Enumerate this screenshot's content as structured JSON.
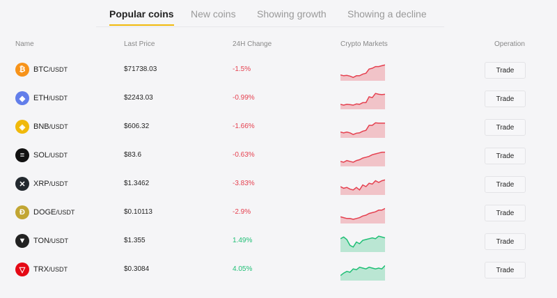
{
  "tabs": [
    "Popular coins",
    "New coins",
    "Showing growth",
    "Showing a decline"
  ],
  "active_tab": 0,
  "headers": {
    "name": "Name",
    "price": "Last Price",
    "change": "24H Change",
    "markets": "Crypto Markets",
    "operation": "Operation"
  },
  "colors": {
    "down": "#e5404f",
    "up": "#1fbf75",
    "accent": "#f0b90b"
  },
  "rows": [
    {
      "base": "BTC",
      "quote": "/USDT",
      "price": "$71738.03",
      "change": "-1.5%",
      "trend": "down",
      "icon": "bitcoin-icon",
      "icon_color": "#f7931a",
      "glyph": "₿",
      "spark": [
        0.35,
        0.3,
        0.32,
        0.28,
        0.2,
        0.3,
        0.3,
        0.4,
        0.45,
        0.7,
        0.75,
        0.85,
        0.85,
        0.9,
        0.95
      ],
      "trade": "Trade"
    },
    {
      "base": "ETH",
      "quote": "/USDT",
      "price": "$2243.03",
      "change": "-0.99%",
      "trend": "down",
      "icon": "ethereum-icon",
      "icon_color": "#627eea",
      "glyph": "◆",
      "spark": [
        0.3,
        0.25,
        0.3,
        0.28,
        0.25,
        0.32,
        0.3,
        0.4,
        0.4,
        0.75,
        0.7,
        0.95,
        0.9,
        0.88,
        0.9
      ],
      "trade": "Trade"
    },
    {
      "base": "BNB",
      "quote": "/USDT",
      "price": "$606.32",
      "change": "-1.66%",
      "trend": "down",
      "icon": "bnb-icon",
      "icon_color": "#f0b90b",
      "glyph": "◈",
      "spark": [
        0.35,
        0.3,
        0.35,
        0.3,
        0.2,
        0.28,
        0.3,
        0.4,
        0.45,
        0.75,
        0.75,
        0.9,
        0.88,
        0.88,
        0.88
      ],
      "trade": "Trade"
    },
    {
      "base": "SOL",
      "quote": "/USDT",
      "price": "$83.6",
      "change": "-0.63%",
      "trend": "down",
      "icon": "solana-icon",
      "icon_color": "#111111",
      "glyph": "≡",
      "spark": [
        0.3,
        0.25,
        0.35,
        0.3,
        0.25,
        0.35,
        0.4,
        0.5,
        0.55,
        0.6,
        0.7,
        0.75,
        0.8,
        0.85,
        0.85
      ],
      "trade": "Trade"
    },
    {
      "base": "XRP",
      "quote": "/USDT",
      "price": "$1.3462",
      "change": "-3.83%",
      "trend": "down",
      "icon": "xrp-icon",
      "icon_color": "#23292f",
      "glyph": "✕",
      "spark": [
        0.5,
        0.4,
        0.45,
        0.35,
        0.3,
        0.45,
        0.3,
        0.6,
        0.5,
        0.7,
        0.65,
        0.85,
        0.75,
        0.85,
        0.9
      ],
      "trade": "Trade"
    },
    {
      "base": "DOGE",
      "quote": "/USDT",
      "price": "$0.10113",
      "change": "-2.9%",
      "trend": "down",
      "icon": "dogecoin-icon",
      "icon_color": "#c2a633",
      "glyph": "Ð",
      "spark": [
        0.4,
        0.35,
        0.3,
        0.3,
        0.25,
        0.3,
        0.35,
        0.45,
        0.5,
        0.6,
        0.65,
        0.7,
        0.8,
        0.8,
        0.9
      ],
      "trade": "Trade"
    },
    {
      "base": "TON",
      "quote": "/USDT",
      "price": "$1.355",
      "change": "1.49%",
      "trend": "up",
      "icon": "ton-icon",
      "icon_color": "#222222",
      "glyph": "▼",
      "spark": [
        0.8,
        0.9,
        0.75,
        0.4,
        0.3,
        0.6,
        0.5,
        0.7,
        0.75,
        0.8,
        0.85,
        0.8,
        0.95,
        0.9,
        0.85
      ],
      "trade": "Trade"
    },
    {
      "base": "TRX",
      "quote": "/USDT",
      "price": "$0.3084",
      "change": "4.05%",
      "trend": "up",
      "icon": "tron-icon",
      "icon_color": "#e50915",
      "glyph": "▽",
      "spark": [
        0.3,
        0.45,
        0.55,
        0.5,
        0.7,
        0.65,
        0.8,
        0.75,
        0.7,
        0.8,
        0.75,
        0.7,
        0.75,
        0.7,
        0.9
      ],
      "trade": "Trade"
    }
  ]
}
